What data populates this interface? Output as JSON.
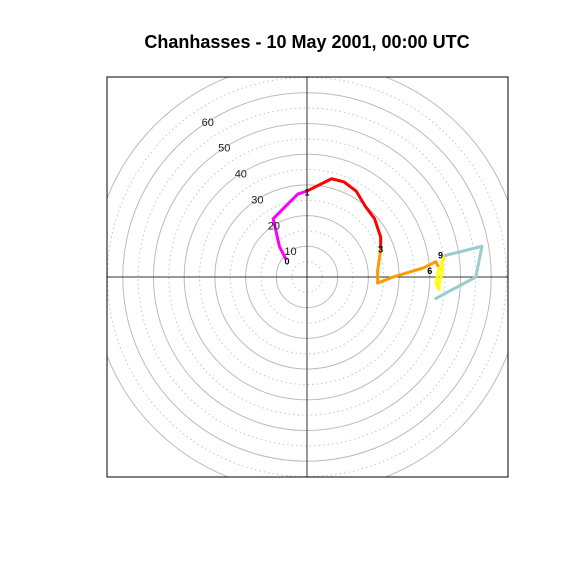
{
  "title": "Chanhasses - 10 May 2001, 00:00 UTC",
  "chart_data": {
    "type": "line",
    "plot": "hodograph",
    "units": "kt",
    "title": "Chanhasses - 10 May 2001, 00:00 UTC",
    "xlabel": "",
    "ylabel": "",
    "xlim": [
      -60,
      60
    ],
    "ylim": [
      -60,
      60
    ],
    "ring_interval": 10,
    "ring_labels": [
      "10",
      "20",
      "30",
      "40",
      "50",
      "60"
    ],
    "grid": true,
    "series": [
      {
        "color": "#ff00ff",
        "points": [
          [
            -7,
            6
          ],
          [
            -8,
            8
          ],
          [
            -9,
            10
          ],
          [
            -11,
            19
          ],
          [
            -3,
            27
          ],
          [
            0,
            28
          ]
        ]
      },
      {
        "color": "#ff0000",
        "points": [
          [
            0,
            28
          ],
          [
            8,
            32
          ],
          [
            12,
            31
          ],
          [
            16,
            28
          ],
          [
            19,
            23
          ],
          [
            22,
            19
          ],
          [
            24,
            13
          ],
          [
            24,
            9
          ]
        ]
      },
      {
        "color": "#ff9900",
        "points": [
          [
            24,
            9
          ],
          [
            23,
            2
          ],
          [
            23,
            -2
          ],
          [
            28,
            0
          ],
          [
            38,
            3
          ],
          [
            42,
            5
          ],
          [
            43,
            3
          ]
        ]
      },
      {
        "color": "#ffff00",
        "points": [
          [
            43,
            3
          ],
          [
            42,
            -2
          ],
          [
            43,
            -4
          ],
          [
            43,
            -2
          ],
          [
            44,
            1
          ],
          [
            44,
            5
          ],
          [
            45,
            7
          ]
        ]
      },
      {
        "color": "#99cccc",
        "points": [
          [
            45,
            7
          ],
          [
            57,
            10
          ],
          [
            55,
            0
          ],
          [
            42,
            -7
          ]
        ]
      }
    ],
    "hour_labels": [
      {
        "text": "0",
        "u": -6.5,
        "v": 5
      },
      {
        "text": "1",
        "u": 0,
        "v": 27.5
      },
      {
        "text": "3",
        "u": 24,
        "v": 9
      },
      {
        "text": "6",
        "u": 40,
        "v": 2
      },
      {
        "text": "9",
        "u": 43.5,
        "v": 7
      }
    ]
  }
}
